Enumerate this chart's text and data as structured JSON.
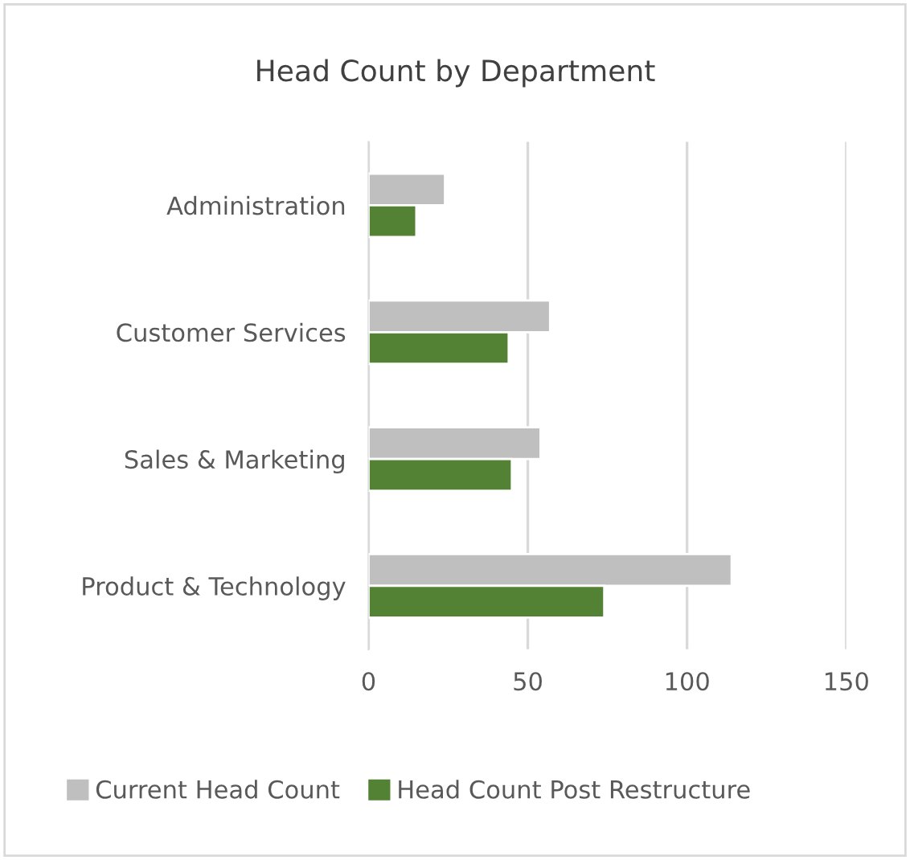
{
  "chart_data": {
    "type": "bar",
    "orientation": "horizontal",
    "title": "Head Count by Department",
    "categories": [
      "Administration",
      "Customer Services",
      "Sales & Marketing",
      "Product & Technology"
    ],
    "series": [
      {
        "name": "Current Head Count",
        "color": "#bfbfbf",
        "values": [
          24,
          57,
          54,
          114
        ]
      },
      {
        "name": "Head Count Post Restructure",
        "color": "#548235",
        "values": [
          15,
          44,
          45,
          74
        ]
      }
    ],
    "xlim": [
      0,
      150
    ],
    "xticks": [
      0,
      50,
      100,
      150
    ],
    "grid": "x",
    "legend": "bottom"
  }
}
